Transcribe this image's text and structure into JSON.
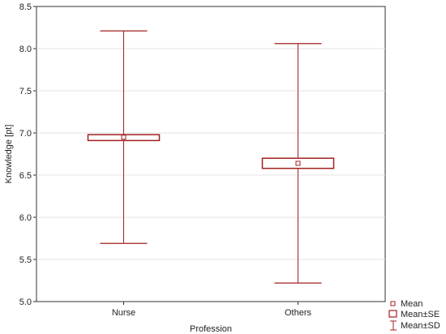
{
  "chart_data": {
    "type": "box",
    "xlabel": "Profession",
    "ylabel": "Knowledge [pt]",
    "categories": [
      "Nurse",
      "Others"
    ],
    "ylim": [
      5.0,
      8.5
    ],
    "y_ticks": [
      "5.0",
      "5.5",
      "6.0",
      "6.5",
      "7.0",
      "7.5",
      "8.0",
      "8.5"
    ],
    "grid": true,
    "legend_position": "bottom-right",
    "color": "#a31f1f",
    "boxes": [
      {
        "category": "Nurse",
        "mean": 6.95,
        "se_low": 6.91,
        "se_high": 6.98,
        "sd_low": 5.69,
        "sd_high": 8.21
      },
      {
        "category": "Others",
        "mean": 6.64,
        "se_low": 6.58,
        "se_high": 6.7,
        "sd_low": 5.22,
        "sd_high": 8.06
      }
    ],
    "legend": [
      {
        "label": "Mean",
        "symbol": "small-square-icon"
      },
      {
        "label": "Mean±SE",
        "symbol": "box-icon"
      },
      {
        "label": "Mean±SD",
        "symbol": "whisker-icon"
      }
    ]
  }
}
